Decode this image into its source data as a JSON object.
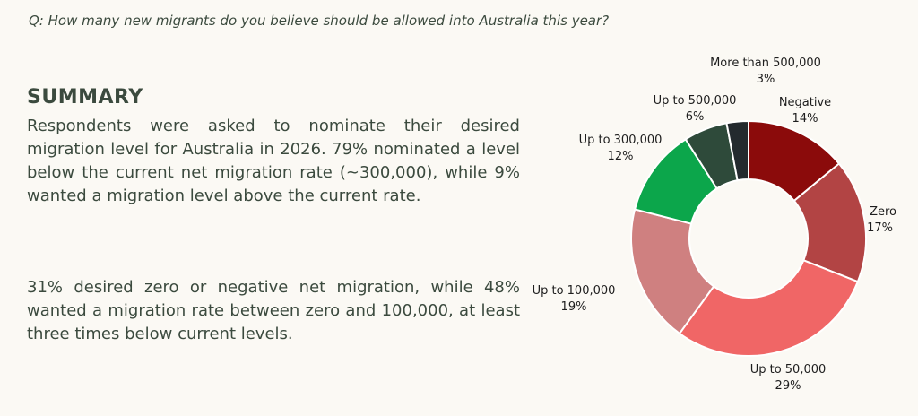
{
  "question": "Q: How many new migrants do you believe should be allowed into Australia this year?",
  "summary": {
    "title": "SUMMARY",
    "paragraph1": "Respondents were asked to nominate their desired migration level for Australia in 2026. 79% nominated a level below the current net migration rate (~300,000), while 9% wanted a migration level above the current rate.",
    "paragraph2": "31% desired zero or negative net migration, while 48% wanted a migration rate between zero and 100,000, at least three times below current levels."
  },
  "chart_data": {
    "type": "pie",
    "donut": true,
    "slices": [
      {
        "label": "Negative",
        "value": 14,
        "display": "14%",
        "color": "#8b0b0b"
      },
      {
        "label": "Zero",
        "value": 17,
        "display": "17%",
        "color": "#b24444"
      },
      {
        "label": "Up to 50,000",
        "value": 29,
        "display": "29%",
        "color": "#f06666"
      },
      {
        "label": "Up to 100,000",
        "value": 19,
        "display": "19%",
        "color": "#cf8080"
      },
      {
        "label": "Up to 300,000",
        "value": 12,
        "display": "12%",
        "color": "#0ca64b"
      },
      {
        "label": "Up to 500,000",
        "value": 6,
        "display": "6%",
        "color": "#2e4a3a"
      },
      {
        "label": "More than 500,000",
        "value": 3,
        "display": "3%",
        "color": "#232a2e"
      }
    ]
  }
}
